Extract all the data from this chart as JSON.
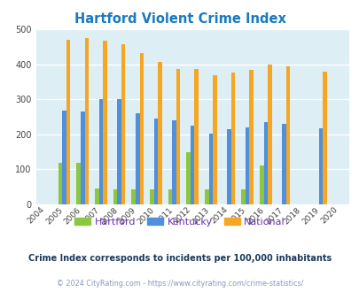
{
  "title": "Hartford Violent Crime Index",
  "years": [
    2004,
    2005,
    2006,
    2007,
    2008,
    2009,
    2010,
    2011,
    2012,
    2013,
    2014,
    2015,
    2016,
    2017,
    2018,
    2019,
    2020
  ],
  "hartford": [
    0,
    118,
    118,
    46,
    44,
    44,
    44,
    42,
    150,
    42,
    0,
    42,
    112,
    0,
    0,
    0,
    0
  ],
  "kentucky": [
    0,
    268,
    265,
    300,
    300,
    261,
    246,
    241,
    224,
    203,
    215,
    220,
    235,
    229,
    0,
    217,
    0
  ],
  "national": [
    0,
    470,
    474,
    468,
    456,
    432,
    406,
    387,
    387,
    368,
    377,
    384,
    399,
    394,
    0,
    379,
    0
  ],
  "hartford_color": "#8dc63f",
  "kentucky_color": "#4f8fdc",
  "national_color": "#f5a623",
  "bg_color": "#ddeef5",
  "ylim": [
    0,
    500
  ],
  "yticks": [
    0,
    100,
    200,
    300,
    400,
    500
  ],
  "subtitle": "Crime Index corresponds to incidents per 100,000 inhabitants",
  "footer": "© 2024 CityRating.com - https://www.cityrating.com/crime-statistics/",
  "subtitle_color": "#1a3a5c",
  "footer_color": "#8899bb",
  "title_color": "#1a7abf",
  "legend_label_color": "#6633aa",
  "legend_hartford": "Hartford",
  "legend_kentucky": "Kentucky",
  "legend_national": "National"
}
